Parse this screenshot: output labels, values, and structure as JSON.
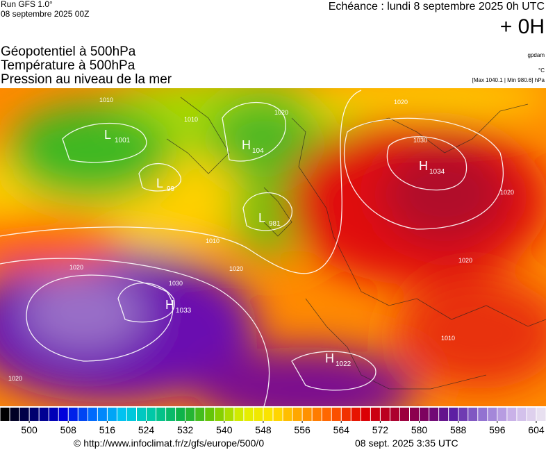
{
  "header": {
    "run": "Run GFS 1.0°",
    "run_date": "08 septembre 2025 00Z",
    "echeance": "Echéance : lundi 8 septembre 2025 0h UTC",
    "offset": "+ 0H",
    "fields": [
      "Géopotentiel à 500hPa",
      "Température à 500hPa",
      "Pression au niveau de la mer"
    ],
    "units": [
      "gpdam",
      "°C",
      "[Max 1040.1 | Min 980.6] hPa"
    ]
  },
  "centers": [
    {
      "letter": "L",
      "value": "1001"
    },
    {
      "letter": "H",
      "value": "104"
    },
    {
      "letter": "L",
      "value": "99"
    },
    {
      "letter": "L",
      "value": "981"
    },
    {
      "letter": "H",
      "value": "1034"
    },
    {
      "letter": "H",
      "value": "1033"
    },
    {
      "letter": "H",
      "value": "1022"
    }
  ],
  "isobar_labels": [
    "1010",
    "1010",
    "1020",
    "1030",
    "1010",
    "1020",
    "1030",
    "1020",
    "1020",
    "1020",
    "1020",
    "1020",
    "1010"
  ],
  "colorbar": {
    "xlim": [
      494,
      606
    ],
    "step": 2,
    "ticks": [
      500,
      508,
      516,
      524,
      532,
      540,
      548,
      556,
      564,
      572,
      580,
      588,
      596,
      604
    ],
    "colors": [
      "#000000",
      "#000070",
      "#0000e0",
      "#0070ff",
      "#00c8f0",
      "#00c8a0",
      "#10b040",
      "#70c800",
      "#e0f000",
      "#ffe000",
      "#ff9a00",
      "#ff5a00",
      "#e00000",
      "#b0002a",
      "#80005a",
      "#5a1aa0",
      "#9070d0",
      "#c8b0e8",
      "#e8e0f0"
    ]
  },
  "footer": {
    "source": "© http://www.infoclimat.fr/z/gfs/europe/500/0",
    "time": "08 sept. 2025  3:35 UTC"
  }
}
